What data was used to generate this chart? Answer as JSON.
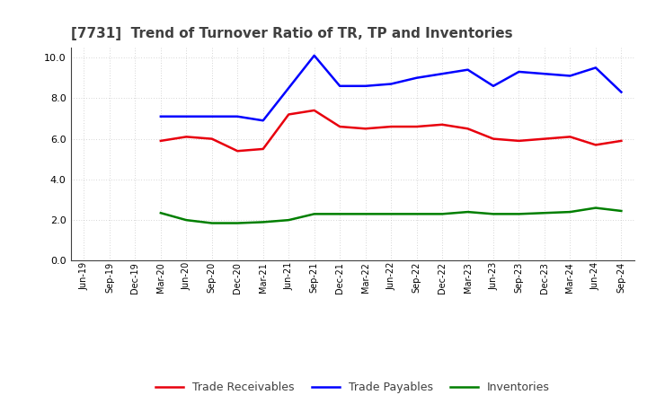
{
  "title": "[7731]  Trend of Turnover Ratio of TR, TP and Inventories",
  "x_labels": [
    "Jun-19",
    "Sep-19",
    "Dec-19",
    "Mar-20",
    "Jun-20",
    "Sep-20",
    "Dec-20",
    "Mar-21",
    "Jun-21",
    "Sep-21",
    "Dec-21",
    "Mar-22",
    "Jun-22",
    "Sep-22",
    "Dec-22",
    "Mar-23",
    "Jun-23",
    "Sep-23",
    "Dec-23",
    "Mar-24",
    "Jun-24",
    "Sep-24"
  ],
  "trade_receivables": [
    null,
    null,
    null,
    5.9,
    6.1,
    6.0,
    5.4,
    5.5,
    7.2,
    7.4,
    6.6,
    6.5,
    6.6,
    6.6,
    6.7,
    6.5,
    6.0,
    5.9,
    6.0,
    6.1,
    5.7,
    5.9
  ],
  "trade_payables": [
    null,
    null,
    null,
    7.1,
    7.1,
    7.1,
    7.1,
    6.9,
    8.5,
    10.1,
    8.6,
    8.6,
    8.7,
    9.0,
    9.2,
    9.4,
    8.6,
    9.3,
    9.2,
    9.1,
    9.5,
    8.3
  ],
  "inventories": [
    null,
    null,
    null,
    2.35,
    2.0,
    1.85,
    1.85,
    1.9,
    2.0,
    2.3,
    2.3,
    2.3,
    2.3,
    2.3,
    2.3,
    2.4,
    2.3,
    2.3,
    2.35,
    2.4,
    2.6,
    2.45
  ],
  "tr_color": "#e8000d",
  "tp_color": "#0000ff",
  "inv_color": "#007f00",
  "ylim": [
    0.0,
    10.5
  ],
  "yticks": [
    0.0,
    2.0,
    4.0,
    6.0,
    8.0,
    10.0
  ],
  "background_color": "#ffffff",
  "grid_color": "#b0b0b0",
  "title_color": "#404040",
  "legend_labels": [
    "Trade Receivables",
    "Trade Payables",
    "Inventories"
  ]
}
